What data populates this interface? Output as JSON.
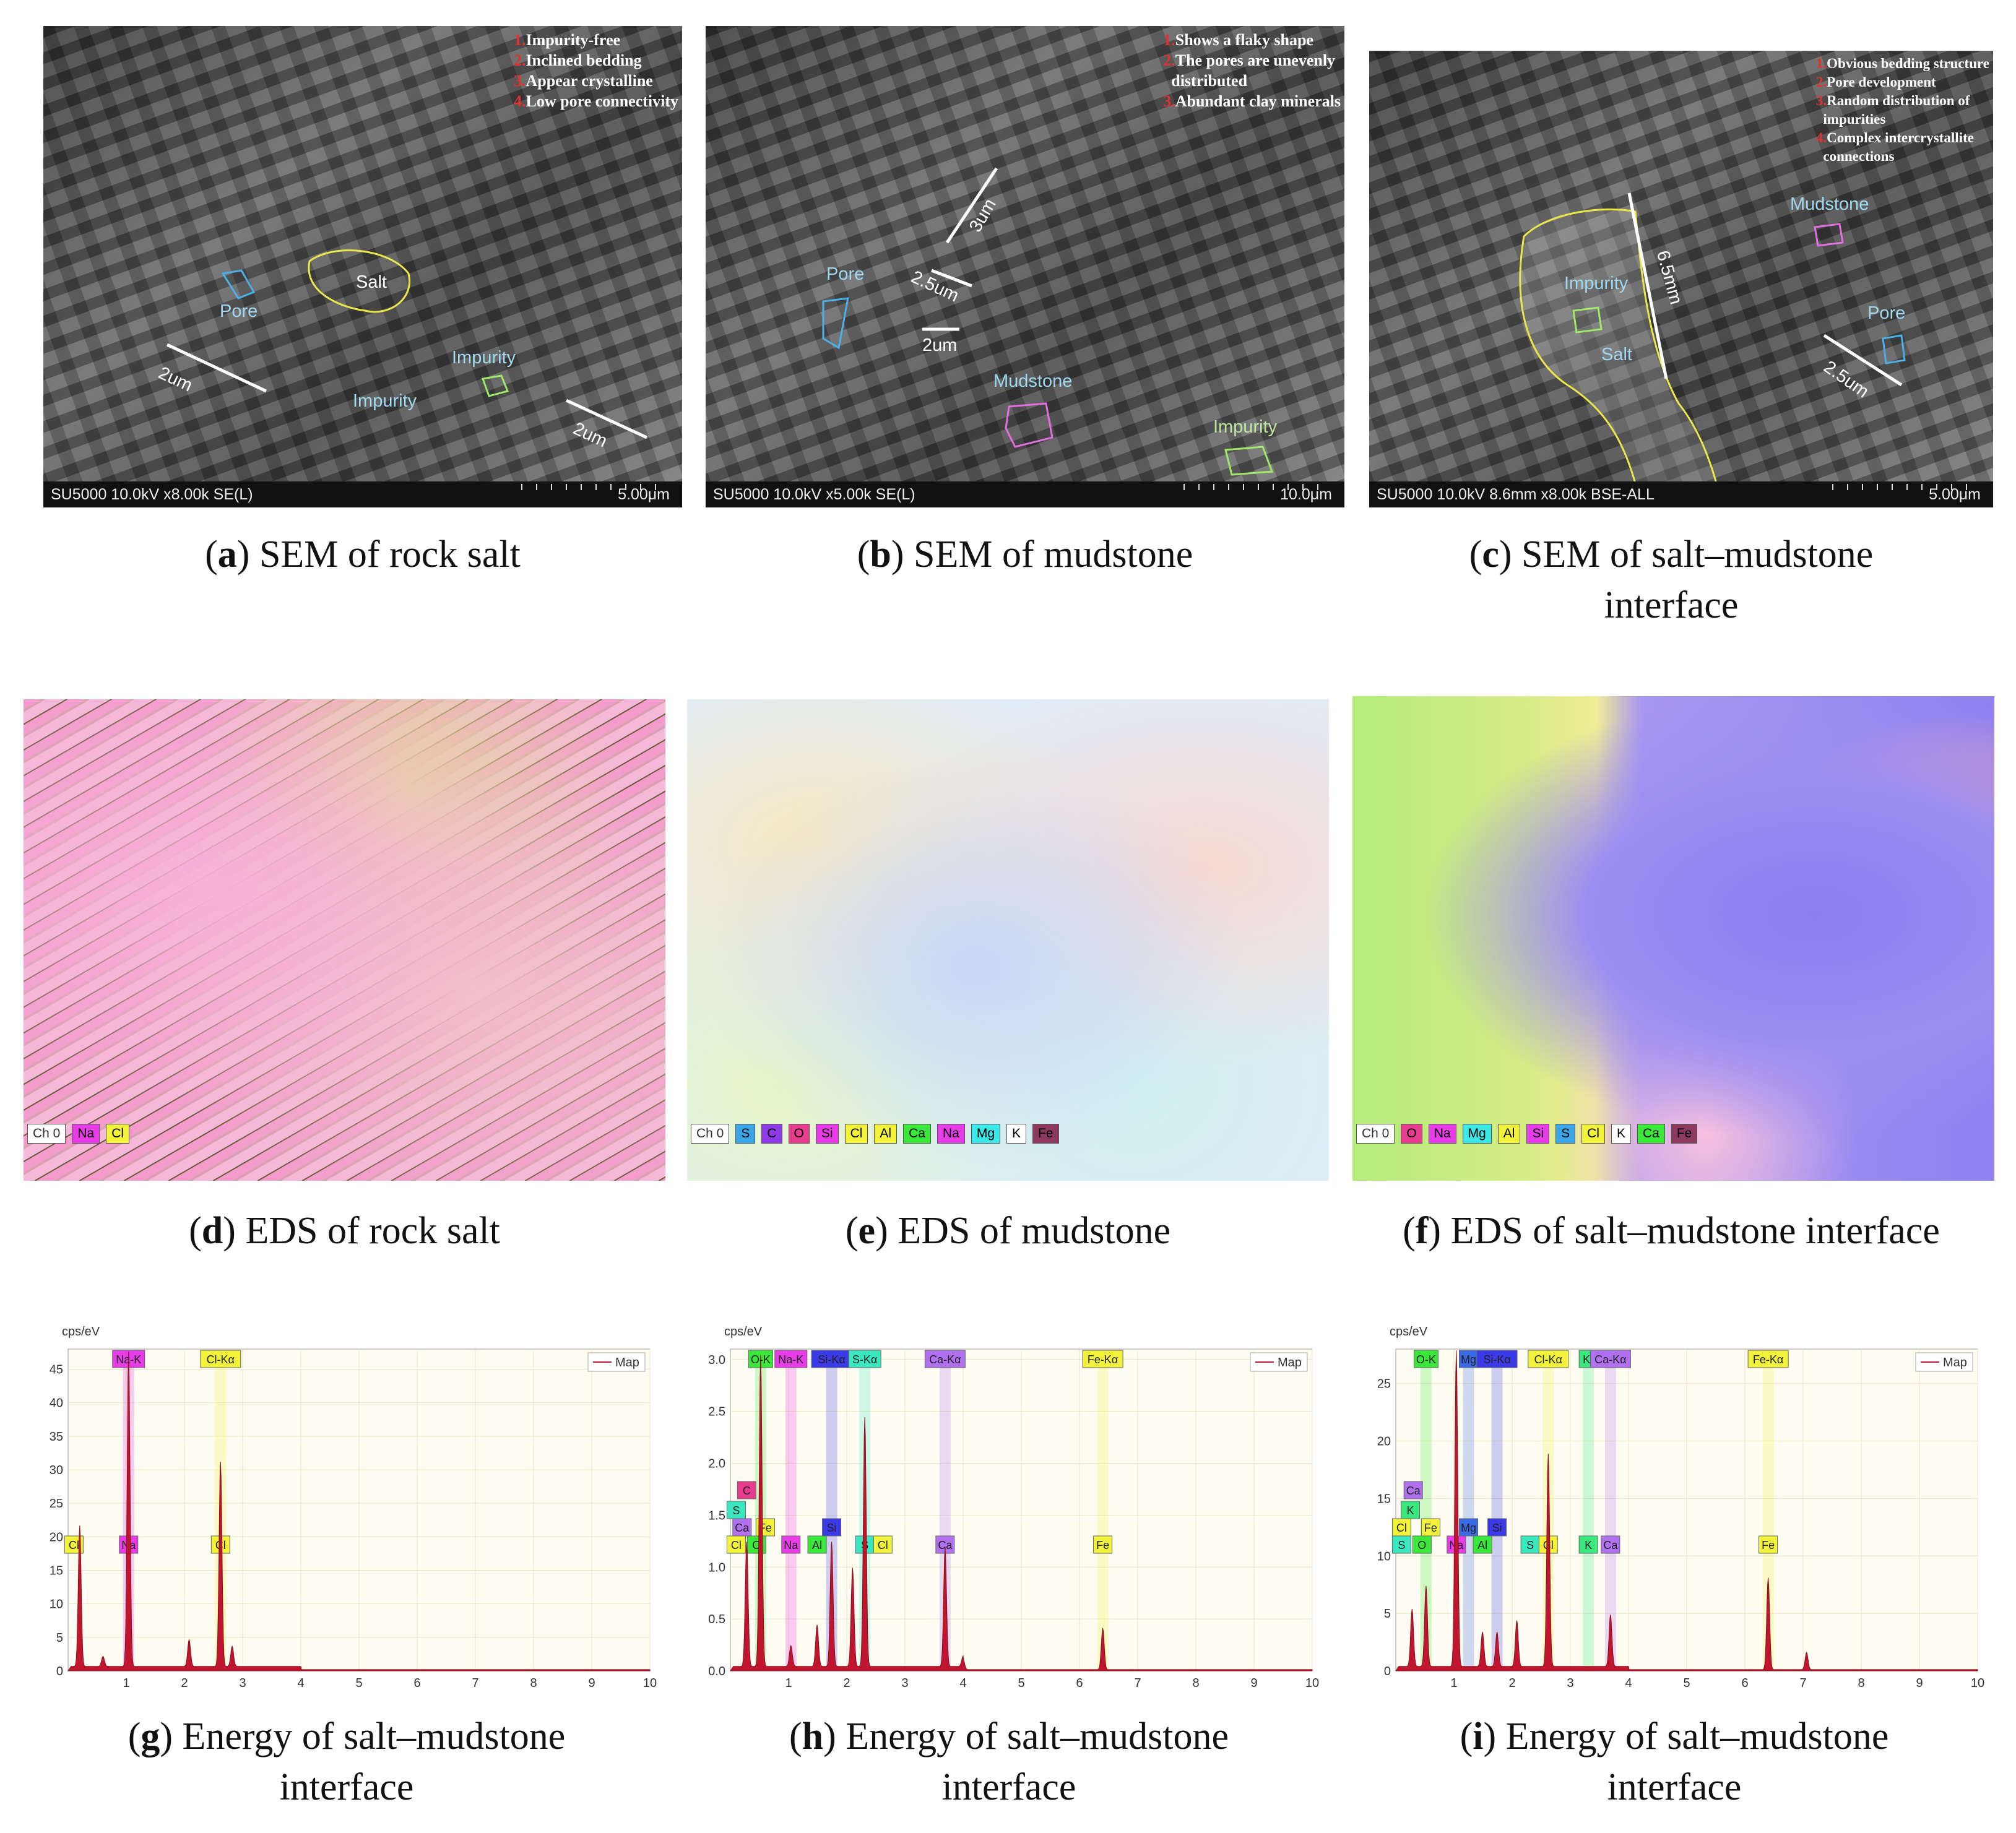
{
  "panels": {
    "a": {
      "letter": "a",
      "caption": "SEM of rock salt",
      "notes": [
        {
          "n": "1.",
          "t": "Impurity-free"
        },
        {
          "n": "2.",
          "t": "Inclined bedding"
        },
        {
          "n": "3.",
          "t": "Appear crystalline"
        },
        {
          "n": "4.",
          "t": "Low pore connectivity"
        }
      ],
      "bar": "SU5000 10.0kV x8.00k SE(L)",
      "scale": "5.00μm",
      "labels": {
        "salt": "Salt",
        "pore": "Pore",
        "impurity1": "Impurity",
        "impurity2": "Impurity",
        "dim1": "2um",
        "dim2": "2um"
      }
    },
    "b": {
      "letter": "b",
      "caption": "SEM of mudstone",
      "notes": [
        {
          "n": "1.",
          "t": "Shows a flaky shape"
        },
        {
          "n": "2.",
          "t": "The pores are unevenly"
        },
        {
          "n": "",
          "t": "distributed"
        },
        {
          "n": "3.",
          "t": "Abundant clay minerals"
        }
      ],
      "bar": "SU5000 10.0kV x5.00k SE(L)",
      "scale": "10.0μm",
      "labels": {
        "pore": "Pore",
        "mudstone": "Mudstone",
        "impurity": "Impurity",
        "dim1": "3um",
        "dim2": "2.5um",
        "dim3": "2um"
      }
    },
    "c": {
      "letter": "c",
      "caption_l1": "SEM of salt–mudstone",
      "caption_l2": "interface",
      "notes": [
        {
          "n": "1.",
          "t": "Obvious bedding structure"
        },
        {
          "n": "2.",
          "t": "Pore development"
        },
        {
          "n": "3.",
          "t": "Random distribution of"
        },
        {
          "n": "",
          "t": "impurities"
        },
        {
          "n": "4.",
          "t": "Complex intercrystallite"
        },
        {
          "n": "",
          "t": "connections"
        }
      ],
      "bar": "SU5000 10.0kV 8.6mm x8.00k BSE-ALL",
      "scale": "5.00μm",
      "labels": {
        "mudstone": "Mudstone",
        "impurity": "Impurity",
        "salt": "Salt",
        "pore": "Pore",
        "dim1": "6.5mm",
        "dim2": "2.5um"
      }
    },
    "d": {
      "letter": "d",
      "caption": "EDS of rock salt",
      "legend": [
        "Ch 0",
        "Na",
        "Cl"
      ]
    },
    "e": {
      "letter": "e",
      "caption": "EDS of mudstone",
      "legend": [
        "Ch 0",
        "S",
        "C",
        "O",
        "Si",
        "Cl",
        "Al",
        "Ca",
        "Na",
        "Mg",
        "K",
        "Fe"
      ]
    },
    "f": {
      "letter": "f",
      "caption": "EDS of salt–mudstone interface",
      "legend": [
        "Ch 0",
        "O",
        "Na",
        "Mg",
        "Al",
        "Si",
        "S",
        "Cl",
        "K",
        "Ca",
        "Fe"
      ]
    },
    "g": {
      "letter": "g",
      "caption_l1": "Energy of salt–mudstone",
      "caption_l2": "interface"
    },
    "h": {
      "letter": "h",
      "caption_l1": "Energy of salt–mudstone",
      "caption_l2": "interface"
    },
    "i": {
      "letter": "i",
      "caption_l1": "Energy of salt–mudstone",
      "caption_l2": "interface"
    }
  },
  "legend_colors": {
    "Na": "#e83ce8",
    "Cl": "#f2f23a",
    "S": "#3aa6e8",
    "C": "#8e3ae8",
    "O": "#e83c8e",
    "Si": "#e83ce8",
    "Al": "#f2f23a",
    "Ca": "#3ae83a",
    "Mg": "#3ae8e8",
    "K": "#ffffff",
    "Fe": "#8e3a5e"
  },
  "chart_data": [
    {
      "type": "line",
      "panel": "g",
      "ylabel": "cps/eV",
      "legend": "Map",
      "xlim": [
        0,
        10
      ],
      "ylim": [
        0,
        48
      ],
      "xticks": [
        1,
        2,
        3,
        4,
        5,
        6,
        7,
        8,
        9,
        10
      ],
      "yticks": [
        0,
        5,
        10,
        15,
        20,
        25,
        30,
        35,
        40,
        45
      ],
      "peaks": [
        {
          "x": 1.04,
          "y": 47
        },
        {
          "x": 2.62,
          "y": 30.5
        },
        {
          "x": 2.82,
          "y": 3
        },
        {
          "x": 2.08,
          "y": 4
        },
        {
          "x": 0.2,
          "y": 21
        },
        {
          "x": 0.6,
          "y": 1.5
        }
      ],
      "element_markers": [
        {
          "label": "Na-K",
          "x": 1.04,
          "row": "top"
        },
        {
          "label": "Cl-Kα",
          "x": 2.62,
          "row": "top"
        },
        {
          "label": "Cl",
          "x": 0.1,
          "row": "mid"
        },
        {
          "label": "Na",
          "x": 1.04,
          "row": "mid"
        },
        {
          "label": "Cl",
          "x": 2.62,
          "row": "mid"
        }
      ]
    },
    {
      "type": "line",
      "panel": "h",
      "ylabel": "cps/eV",
      "legend": "Map",
      "xlim": [
        0,
        10
      ],
      "ylim": [
        0,
        3.1
      ],
      "xticks": [
        1,
        2,
        3,
        4,
        5,
        6,
        7,
        8,
        9,
        10
      ],
      "yticks": [
        0.0,
        0.5,
        1.0,
        1.5,
        2.0,
        2.5,
        3.0
      ],
      "peaks": [
        {
          "x": 0.52,
          "y": 3.0
        },
        {
          "x": 1.74,
          "y": 1.2
        },
        {
          "x": 2.31,
          "y": 2.4
        },
        {
          "x": 3.69,
          "y": 1.15
        },
        {
          "x": 2.1,
          "y": 0.95
        },
        {
          "x": 1.49,
          "y": 0.4
        },
        {
          "x": 1.04,
          "y": 0.2
        },
        {
          "x": 0.28,
          "y": 1.2
        },
        {
          "x": 4.0,
          "y": 0.1
        },
        {
          "x": 6.4,
          "y": 0.4
        }
      ],
      "element_markers": [
        {
          "label": "O-K",
          "x": 0.52,
          "row": "top"
        },
        {
          "label": "Na-K",
          "x": 1.04,
          "row": "top"
        },
        {
          "label": "Si-Kα",
          "x": 1.74,
          "row": "top"
        },
        {
          "label": "S-Kα",
          "x": 2.31,
          "row": "top"
        },
        {
          "label": "Ca-Kα",
          "x": 3.69,
          "row": "top"
        },
        {
          "label": "Fe-Kα",
          "x": 6.4,
          "row": "top"
        },
        {
          "label": "C",
          "x": 0.28,
          "row": "a"
        },
        {
          "label": "S",
          "x": 0.1,
          "row": "b"
        },
        {
          "label": "Ca",
          "x": 0.2,
          "row": "c"
        },
        {
          "label": "Fe",
          "x": 0.6,
          "row": "c"
        },
        {
          "label": "Si",
          "x": 1.74,
          "row": "c"
        },
        {
          "label": "Cl",
          "x": 0.1,
          "row": "mid"
        },
        {
          "label": "O",
          "x": 0.45,
          "row": "mid"
        },
        {
          "label": "Na",
          "x": 1.04,
          "row": "mid"
        },
        {
          "label": "Al",
          "x": 1.49,
          "row": "mid"
        },
        {
          "label": "S",
          "x": 2.31,
          "row": "mid"
        },
        {
          "label": "Cl",
          "x": 2.62,
          "row": "mid"
        },
        {
          "label": "Ca",
          "x": 3.69,
          "row": "mid"
        },
        {
          "label": "Fe",
          "x": 6.4,
          "row": "mid"
        }
      ]
    },
    {
      "type": "line",
      "panel": "i",
      "ylabel": "cps/eV",
      "legend": "Map",
      "xlim": [
        0,
        10
      ],
      "ylim": [
        0,
        28
      ],
      "xticks": [
        1,
        2,
        3,
        4,
        5,
        6,
        7,
        8,
        9,
        10
      ],
      "yticks": [
        0,
        5,
        10,
        15,
        20,
        25
      ],
      "peaks": [
        {
          "x": 1.04,
          "y": 27.5
        },
        {
          "x": 2.62,
          "y": 18.5
        },
        {
          "x": 2.08,
          "y": 4
        },
        {
          "x": 1.49,
          "y": 3
        },
        {
          "x": 1.74,
          "y": 3
        },
        {
          "x": 0.52,
          "y": 7
        },
        {
          "x": 0.28,
          "y": 5
        },
        {
          "x": 3.69,
          "y": 4.5
        },
        {
          "x": 6.4,
          "y": 8
        },
        {
          "x": 7.06,
          "y": 1.5
        }
      ],
      "element_markers": [
        {
          "label": "O-K",
          "x": 0.52,
          "row": "top"
        },
        {
          "label": "Mg",
          "x": 1.25,
          "row": "top"
        },
        {
          "label": "Si-Kα",
          "x": 1.74,
          "row": "top"
        },
        {
          "label": "Cl-Kα",
          "x": 2.62,
          "row": "top"
        },
        {
          "label": "K-",
          "x": 3.31,
          "row": "top"
        },
        {
          "label": "Ca-Kα",
          "x": 3.69,
          "row": "top"
        },
        {
          "label": "Fe-Kα",
          "x": 6.4,
          "row": "top"
        },
        {
          "label": "Ca",
          "x": 0.3,
          "row": "a"
        },
        {
          "label": "K",
          "x": 0.25,
          "row": "b"
        },
        {
          "label": "Cl",
          "x": 0.1,
          "row": "c"
        },
        {
          "label": "Fe",
          "x": 0.6,
          "row": "c"
        },
        {
          "label": "Mg",
          "x": 1.25,
          "row": "c"
        },
        {
          "label": "Si",
          "x": 1.74,
          "row": "c"
        },
        {
          "label": "S",
          "x": 0.1,
          "row": "mid"
        },
        {
          "label": "O",
          "x": 0.45,
          "row": "mid"
        },
        {
          "label": "Na",
          "x": 1.04,
          "row": "mid"
        },
        {
          "label": "Al",
          "x": 1.49,
          "row": "mid"
        },
        {
          "label": "S",
          "x": 2.31,
          "row": "mid"
        },
        {
          "label": "Cl",
          "x": 2.62,
          "row": "mid"
        },
        {
          "label": "K",
          "x": 3.31,
          "row": "mid"
        },
        {
          "label": "Ca",
          "x": 3.69,
          "row": "mid"
        },
        {
          "label": "Fe",
          "x": 6.4,
          "row": "mid"
        }
      ]
    }
  ]
}
